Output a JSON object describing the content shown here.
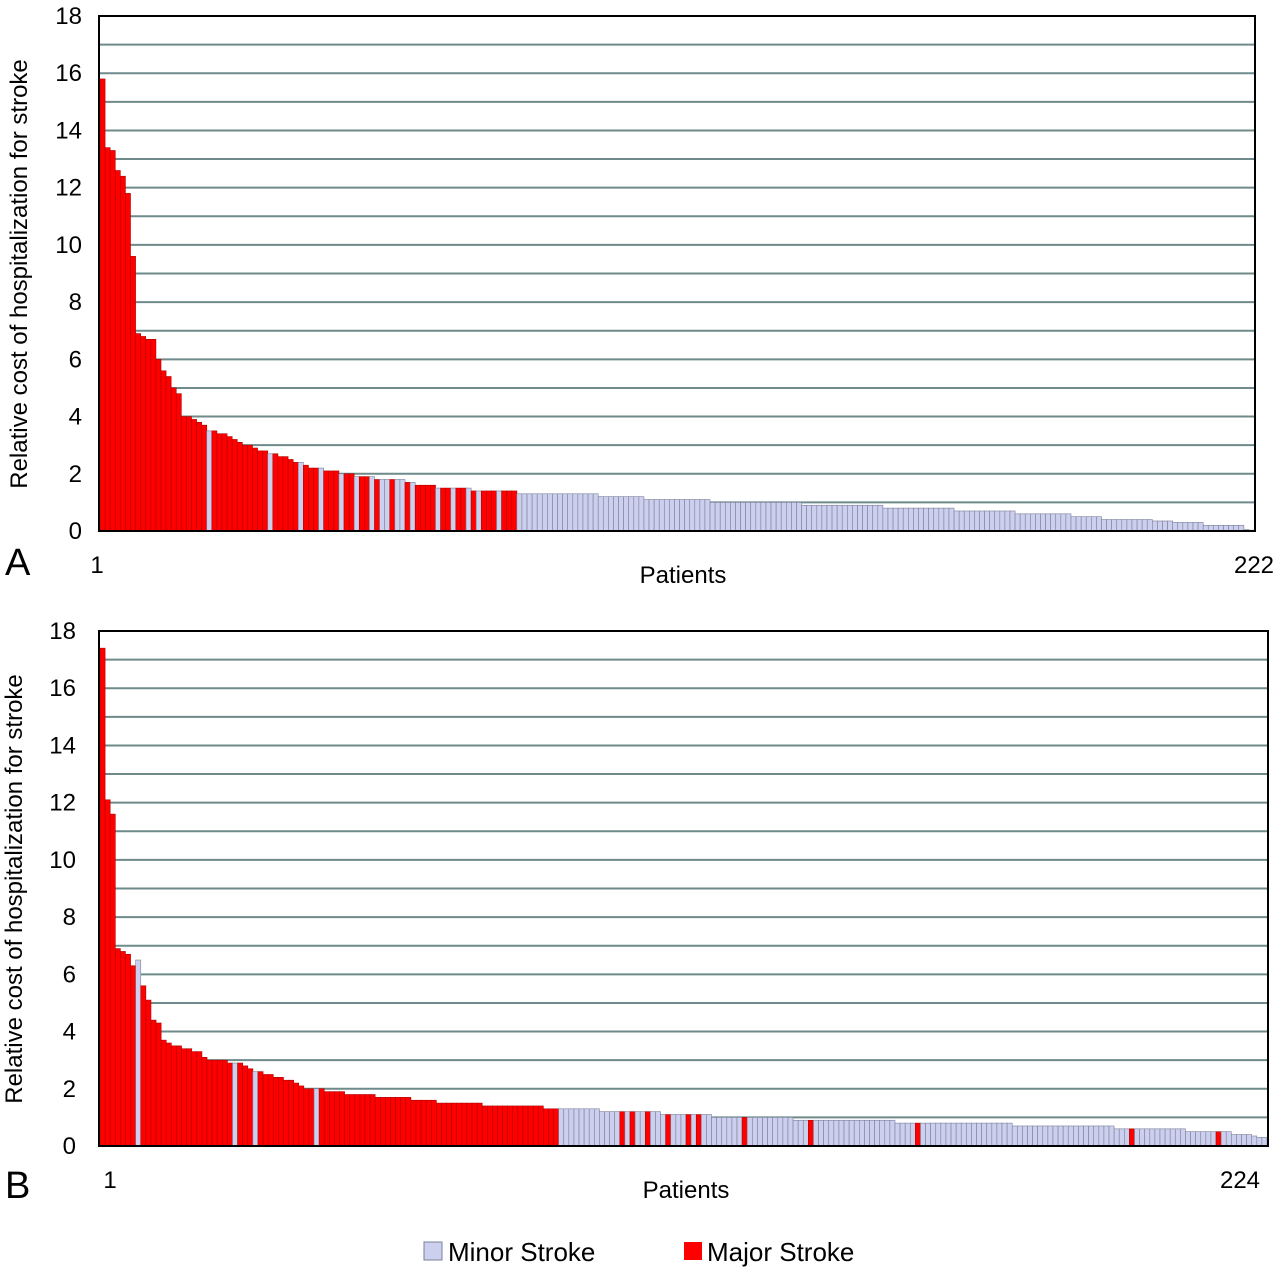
{
  "colors": {
    "minor": "#CCD0EE",
    "major": "#FF0000",
    "grid": "#6F8A8A",
    "bar_edge": "#7A7F9A"
  },
  "legend": [
    {
      "label": "Minor Stroke",
      "color": "#CCD0EE",
      "key": "minor"
    },
    {
      "label": "Major Stroke",
      "color": "#FF0000",
      "key": "major"
    }
  ],
  "chart_data": [
    {
      "type": "bar",
      "panel_label": "A",
      "xlabel": "Patients",
      "ylabel": "Relative cost of hospitalization for stroke",
      "ylim": [
        0,
        18
      ],
      "yticks": [
        0,
        2,
        4,
        6,
        8,
        10,
        12,
        14,
        16,
        18
      ],
      "x_first_label": "1",
      "x_last_label": "222",
      "grid": true,
      "series": [
        {
          "key": "major",
          "name": "Major Stroke",
          "indices": [
            1,
            2,
            3,
            4,
            5,
            6,
            7,
            8,
            9,
            10,
            11,
            12,
            13,
            14,
            15,
            16,
            17,
            18,
            19,
            20,
            21,
            23,
            24,
            25,
            26,
            27,
            28,
            29,
            30,
            31,
            32,
            33,
            35,
            36,
            37,
            38,
            39,
            41,
            42,
            43,
            45,
            46,
            47,
            49,
            50,
            52,
            53,
            55,
            58,
            61,
            63,
            64,
            65,
            66,
            68,
            69,
            71,
            72,
            74,
            76,
            77,
            78,
            80,
            81,
            82
          ]
        }
      ],
      "values": [
        15.8,
        13.4,
        13.3,
        12.6,
        12.4,
        11.8,
        9.6,
        6.9,
        6.8,
        6.7,
        6.7,
        6.0,
        5.6,
        5.4,
        5.0,
        4.8,
        4.0,
        4.0,
        3.9,
        3.8,
        3.7,
        3.5,
        3.5,
        3.4,
        3.4,
        3.3,
        3.2,
        3.1,
        3.0,
        3.0,
        2.9,
        2.8,
        2.8,
        2.7,
        2.7,
        2.6,
        2.6,
        2.5,
        2.4,
        2.4,
        2.3,
        2.2,
        2.2,
        2.2,
        2.1,
        2.1,
        2.1,
        2.0,
        2.0,
        2.0,
        1.9,
        1.9,
        1.9,
        1.9,
        1.8,
        1.8,
        1.8,
        1.8,
        1.8,
        1.8,
        1.7,
        1.7,
        1.6,
        1.6,
        1.6,
        1.6,
        1.5,
        1.5,
        1.5,
        1.5,
        1.5,
        1.5,
        1.5,
        1.4,
        1.4,
        1.4,
        1.4,
        1.4,
        1.4,
        1.4,
        1.4,
        1.4,
        1.3,
        1.3,
        1.3,
        1.3,
        1.3,
        1.3,
        1.3,
        1.3,
        1.3,
        1.3,
        1.3,
        1.3,
        1.3,
        1.3,
        1.3,
        1.3,
        1.2,
        1.2,
        1.2,
        1.2,
        1.2,
        1.2,
        1.2,
        1.2,
        1.2,
        1.1,
        1.1,
        1.1,
        1.1,
        1.1,
        1.1,
        1.1,
        1.1,
        1.1,
        1.1,
        1.1,
        1.1,
        1.1,
        1.0,
        1.0,
        1.0,
        1.0,
        1.0,
        1.0,
        1.0,
        1.0,
        1.0,
        1.0,
        1.0,
        1.0,
        1.0,
        1.0,
        1.0,
        1.0,
        1.0,
        1.0,
        0.9,
        0.9,
        0.9,
        0.9,
        0.9,
        0.9,
        0.9,
        0.9,
        0.9,
        0.9,
        0.9,
        0.9,
        0.9,
        0.9,
        0.9,
        0.9,
        0.8,
        0.8,
        0.8,
        0.8,
        0.8,
        0.8,
        0.8,
        0.8,
        0.8,
        0.8,
        0.8,
        0.8,
        0.8,
        0.8,
        0.7,
        0.7,
        0.7,
        0.7,
        0.7,
        0.7,
        0.7,
        0.7,
        0.7,
        0.7,
        0.7,
        0.7,
        0.6,
        0.6,
        0.6,
        0.6,
        0.6,
        0.6,
        0.6,
        0.6,
        0.6,
        0.6,
        0.6,
        0.5,
        0.5,
        0.5,
        0.5,
        0.5,
        0.5,
        0.4,
        0.4,
        0.4,
        0.4,
        0.4,
        0.4,
        0.4,
        0.4,
        0.4,
        0.4,
        0.35,
        0.35,
        0.35,
        0.35,
        0.3,
        0.3,
        0.3,
        0.3,
        0.3,
        0.3,
        0.2,
        0.2,
        0.2,
        0.2,
        0.2,
        0.2,
        0.2,
        0.2,
        0.05,
        0.03
      ]
    },
    {
      "type": "bar",
      "panel_label": "B",
      "xlabel": "Patients",
      "ylabel": "Relative cost of hospitalization for stroke",
      "ylim": [
        0,
        18
      ],
      "yticks": [
        0,
        2,
        4,
        6,
        8,
        10,
        12,
        14,
        16,
        18
      ],
      "x_first_label": "1",
      "x_last_label": "224",
      "grid": true,
      "series": [
        {
          "key": "major",
          "name": "Major Stroke",
          "indices": [
            1,
            2,
            3,
            4,
            5,
            6,
            7,
            9,
            10,
            11,
            12,
            13,
            14,
            15,
            16,
            17,
            18,
            19,
            20,
            21,
            22,
            23,
            24,
            25,
            26,
            28,
            29,
            30,
            32,
            33,
            34,
            35,
            36,
            37,
            38,
            39,
            40,
            41,
            42,
            44,
            45,
            46,
            47,
            48,
            49,
            50,
            51,
            52,
            53,
            54,
            55,
            56,
            57,
            58,
            59,
            60,
            61,
            62,
            63,
            64,
            65,
            66,
            67,
            68,
            69,
            70,
            71,
            72,
            73,
            74,
            75,
            76,
            77,
            78,
            79,
            80,
            81,
            82,
            83,
            84,
            85,
            86,
            87,
            88,
            89,
            90
          ]
        }
      ],
      "values": [
        17.4,
        12.1,
        11.6,
        6.9,
        6.8,
        6.7,
        6.3,
        6.5,
        5.6,
        5.1,
        4.4,
        4.3,
        3.7,
        3.6,
        3.5,
        3.5,
        3.4,
        3.4,
        3.3,
        3.3,
        3.1,
        3.0,
        3.0,
        3.0,
        3.0,
        2.9,
        2.9,
        2.9,
        2.8,
        2.7,
        2.6,
        2.6,
        2.5,
        2.5,
        2.4,
        2.4,
        2.3,
        2.3,
        2.2,
        2.1,
        2.0,
        2.0,
        2.0,
        2.0,
        1.9,
        1.9,
        1.9,
        1.9,
        1.8,
        1.8,
        1.8,
        1.8,
        1.8,
        1.8,
        1.7,
        1.7,
        1.7,
        1.7,
        1.7,
        1.7,
        1.7,
        1.6,
        1.6,
        1.6,
        1.6,
        1.6,
        1.5,
        1.5,
        1.5,
        1.5,
        1.5,
        1.5,
        1.5,
        1.5,
        1.5,
        1.4,
        1.4,
        1.4,
        1.4,
        1.4,
        1.4,
        1.4,
        1.4,
        1.4,
        1.4,
        1.4,
        1.4,
        1.3,
        1.3,
        1.3,
        1.3,
        1.3,
        1.3,
        1.3,
        1.3,
        1.3,
        1.3,
        1.3,
        1.2,
        1.2,
        1.2,
        1.2,
        1.2,
        1.2,
        1.2,
        1.2,
        1.2,
        1.2,
        1.2,
        1.2,
        1.1,
        1.1,
        1.1,
        1.1,
        1.1,
        1.1,
        1.1,
        1.1,
        1.1,
        1.1,
        1.0,
        1.0,
        1.0,
        1.0,
        1.0,
        1.0,
        1.0,
        1.0,
        1.0,
        1.0,
        1.0,
        1.0,
        1.0,
        1.0,
        1.0,
        1.0,
        0.9,
        0.9,
        0.9,
        0.9,
        0.9,
        0.9,
        0.9,
        0.9,
        0.9,
        0.9,
        0.9,
        0.9,
        0.9,
        0.9,
        0.9,
        0.9,
        0.9,
        0.9,
        0.9,
        0.9,
        0.8,
        0.8,
        0.8,
        0.8,
        0.8,
        0.8,
        0.8,
        0.8,
        0.8,
        0.8,
        0.8,
        0.8,
        0.8,
        0.8,
        0.8,
        0.8,
        0.8,
        0.8,
        0.8,
        0.8,
        0.8,
        0.8,
        0.8,
        0.7,
        0.7,
        0.7,
        0.7,
        0.7,
        0.7,
        0.7,
        0.7,
        0.7,
        0.7,
        0.7,
        0.7,
        0.7,
        0.7,
        0.7,
        0.7,
        0.7,
        0.7,
        0.7,
        0.7,
        0.6,
        0.6,
        0.6,
        0.6,
        0.6,
        0.6,
        0.6,
        0.6,
        0.6,
        0.6,
        0.6,
        0.6,
        0.6,
        0.6,
        0.5,
        0.5,
        0.5,
        0.5,
        0.5,
        0.5,
        0.5,
        0.5,
        0.5,
        0.4,
        0.4,
        0.4,
        0.4,
        0.35,
        0.3,
        0.3
      ],
      "major_extra": [
        103,
        105,
        108,
        112,
        116,
        118,
        127,
        140,
        161,
        203,
        220
      ]
    }
  ]
}
